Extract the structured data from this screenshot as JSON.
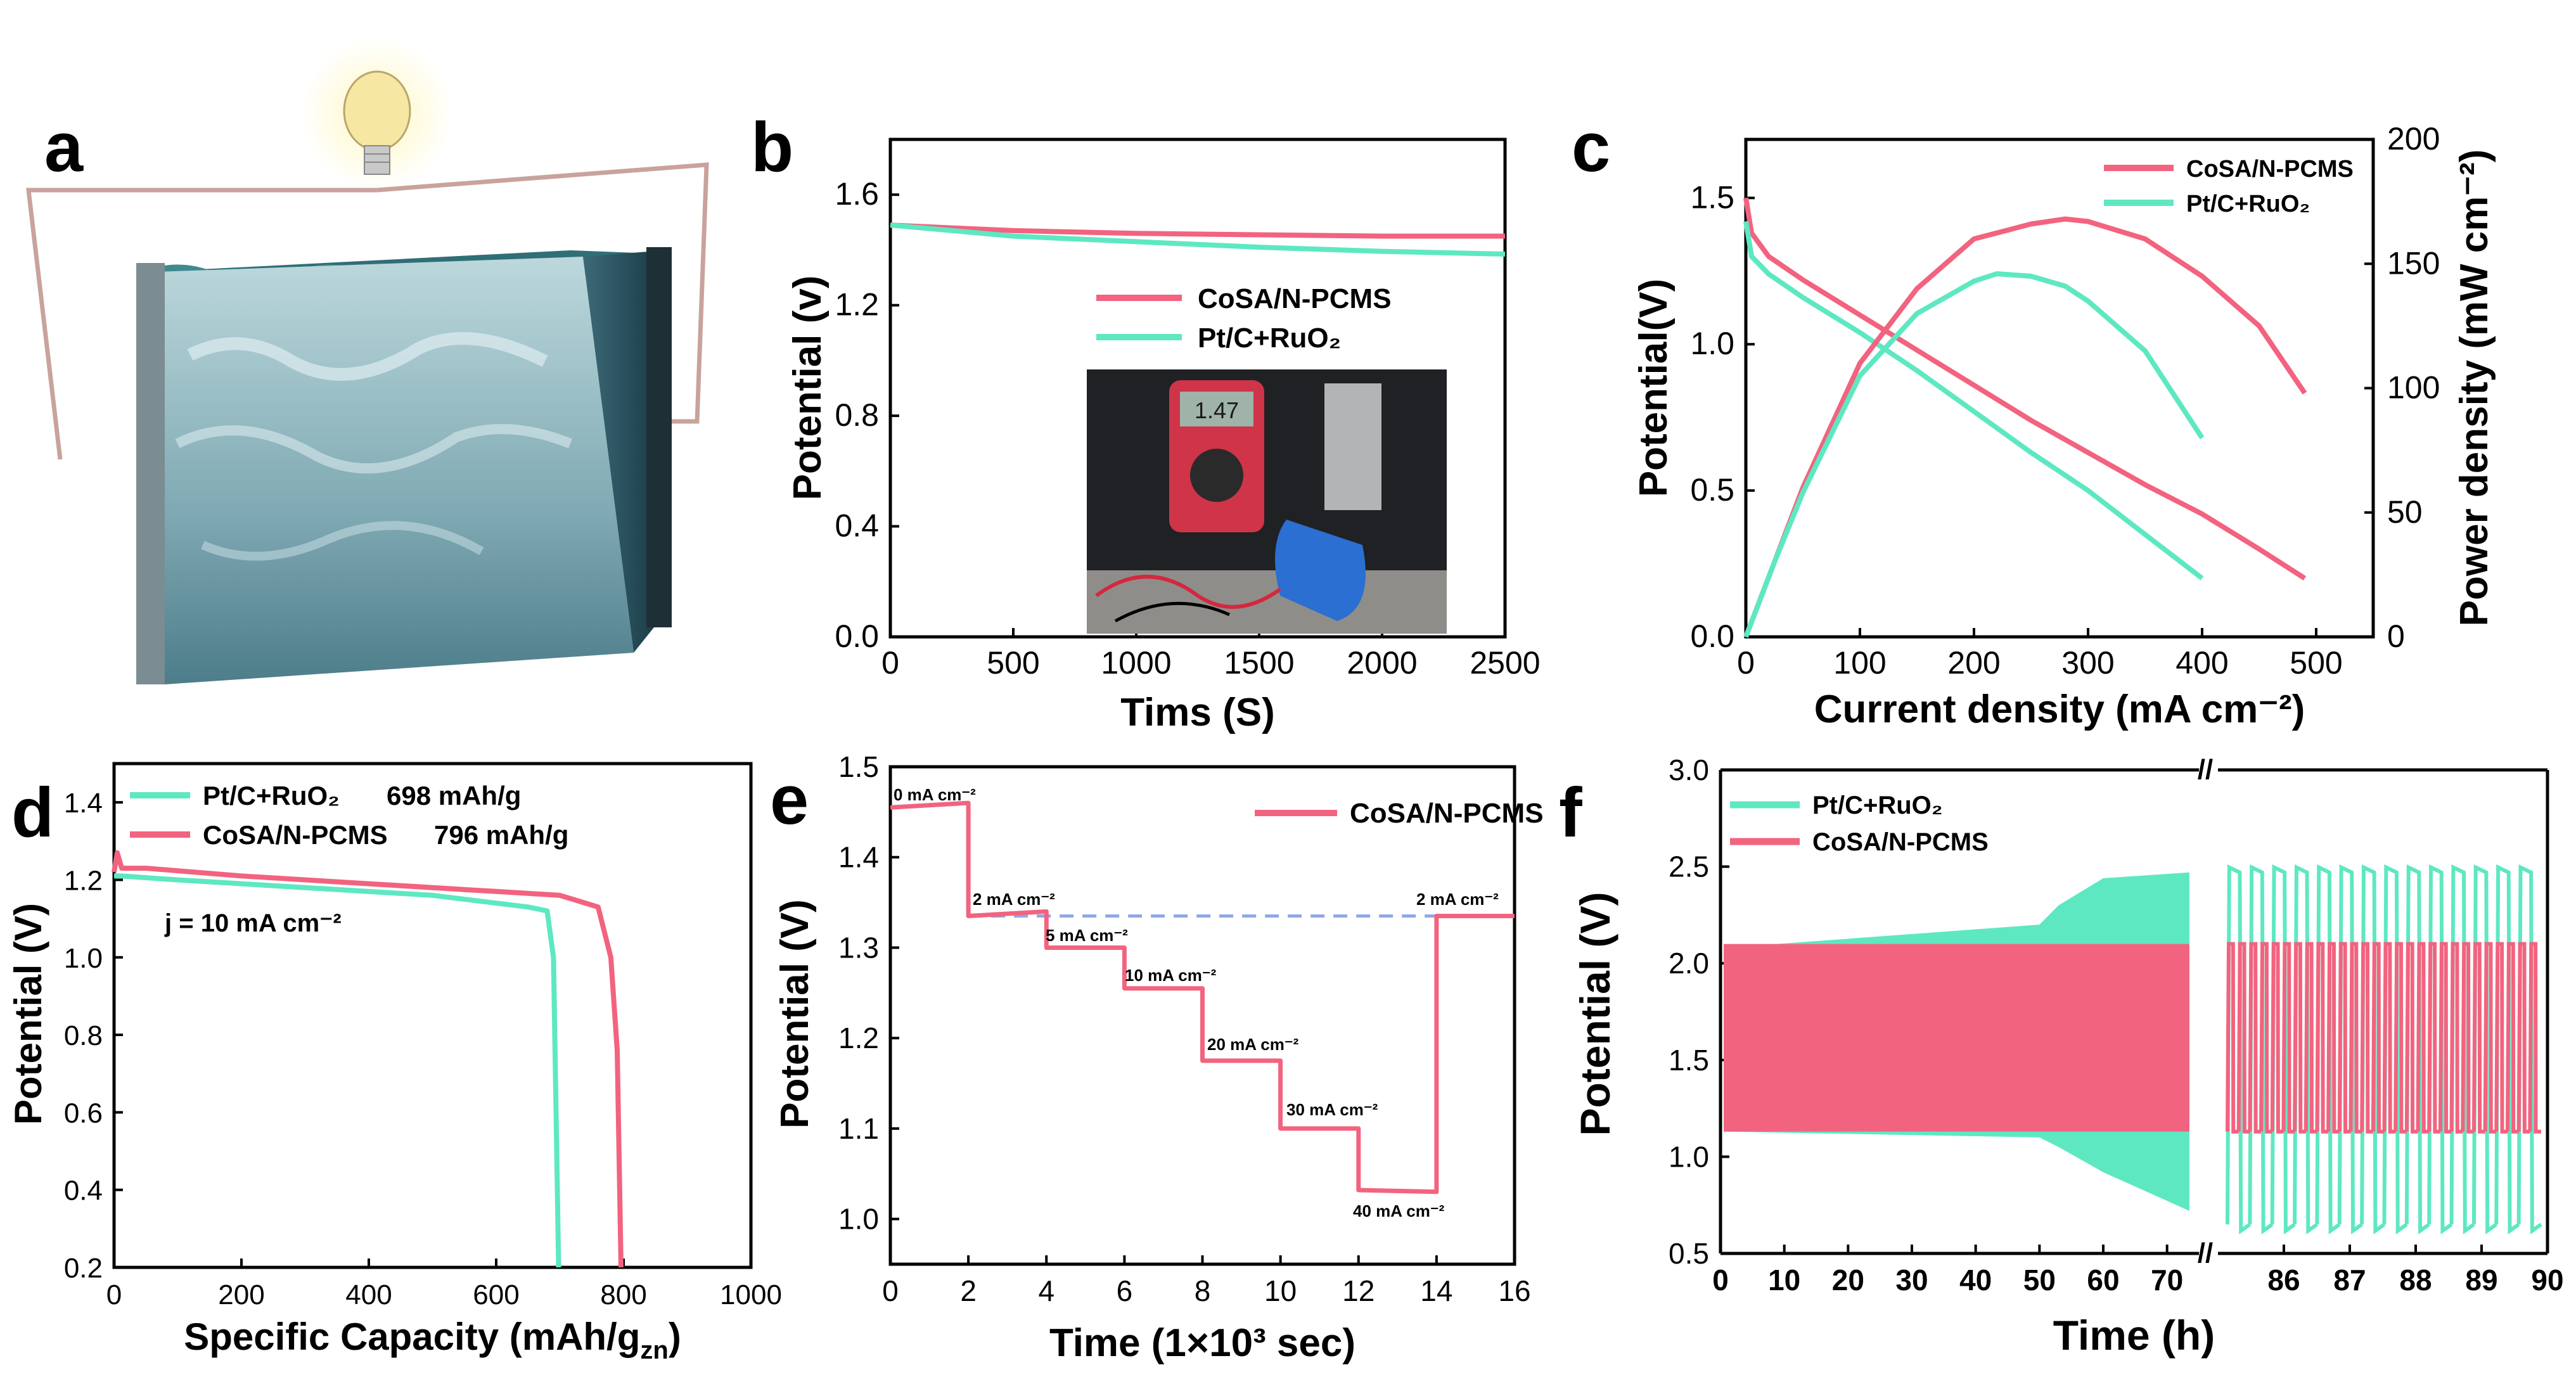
{
  "colors": {
    "pink": "#f2637f",
    "cyan": "#5ee8c2",
    "dash": "#8fa9e8",
    "axis": "#000000"
  },
  "panels": {
    "a": {
      "label": "a",
      "description_icons": [
        "lightbulb-icon",
        "water-cube-icon",
        "circuit-wire-icon"
      ]
    },
    "b": {
      "label": "b"
    },
    "c": {
      "label": "c"
    },
    "d": {
      "label": "d"
    },
    "e": {
      "label": "e"
    },
    "f": {
      "label": "f"
    }
  },
  "chart_data": [
    {
      "id": "b",
      "type": "line",
      "title": "",
      "xlabel": "Tims (S)",
      "ylabel": "Potential (v)",
      "xlim": [
        0,
        2500
      ],
      "ylim": [
        0,
        1.8
      ],
      "xticks": [
        "0",
        "500",
        "1000",
        "1500",
        "2000",
        "2500"
      ],
      "yticks": [
        "0.0",
        "0.4",
        "0.8",
        "1.2",
        "1.6"
      ],
      "inset": "photo of multimeter reading 1.47 V connected to cell",
      "inset_reading": "1.47",
      "series": [
        {
          "name": "CoSA/N-PCMS",
          "color": "pink",
          "x": [
            0,
            250,
            500,
            1000,
            1500,
            2000,
            2500
          ],
          "y": [
            1.49,
            1.48,
            1.47,
            1.46,
            1.455,
            1.45,
            1.45
          ]
        },
        {
          "name": "Pt/C+RuO₂",
          "color": "cyan",
          "x": [
            0,
            250,
            500,
            1000,
            1500,
            2000,
            2500
          ],
          "y": [
            1.49,
            1.47,
            1.45,
            1.43,
            1.41,
            1.395,
            1.385
          ]
        }
      ]
    },
    {
      "id": "c",
      "type": "line",
      "xlabel": "Current density (mA cm⁻²)",
      "ylabel": "Potential(V)",
      "y2label": "Power density (mW cm⁻²)",
      "xlim": [
        0,
        550
      ],
      "ylim": [
        0,
        1.7
      ],
      "y2lim": [
        0,
        200
      ],
      "xticks": [
        "0",
        "100",
        "200",
        "300",
        "400",
        "500"
      ],
      "yticks": [
        "0.0",
        "0.5",
        "1.0",
        "1.5"
      ],
      "y2ticks": [
        "0",
        "50",
        "100",
        "150",
        "200"
      ],
      "series": [
        {
          "name": "CoSA/N-PCMS",
          "axis": "left",
          "color": "pink",
          "x": [
            0,
            5,
            20,
            50,
            100,
            150,
            200,
            250,
            300,
            350,
            400,
            450,
            490
          ],
          "y": [
            1.5,
            1.38,
            1.3,
            1.22,
            1.1,
            0.98,
            0.86,
            0.74,
            0.63,
            0.52,
            0.42,
            0.3,
            0.2
          ]
        },
        {
          "name": "Pt/C+RuO₂",
          "axis": "left",
          "color": "cyan",
          "x": [
            0,
            5,
            20,
            50,
            100,
            150,
            200,
            250,
            300,
            350,
            400
          ],
          "y": [
            1.42,
            1.3,
            1.24,
            1.16,
            1.04,
            0.91,
            0.77,
            0.63,
            0.5,
            0.35,
            0.2
          ]
        },
        {
          "name": "CoSA/N-PCMS power",
          "axis": "right",
          "color": "pink",
          "x": [
            0,
            25,
            50,
            100,
            150,
            200,
            250,
            280,
            300,
            350,
            400,
            450,
            490
          ],
          "y": [
            0,
            30,
            60,
            110,
            140,
            160,
            166,
            168,
            167,
            160,
            145,
            125,
            98
          ]
        },
        {
          "name": "Pt/C+RuO₂ power",
          "axis": "right",
          "color": "cyan",
          "x": [
            0,
            25,
            50,
            100,
            150,
            200,
            220,
            250,
            280,
            300,
            350,
            400
          ],
          "y": [
            0,
            30,
            58,
            105,
            130,
            143,
            146,
            145,
            141,
            135,
            115,
            80
          ]
        }
      ],
      "legend": [
        "CoSA/N-PCMS",
        "Pt/C+RuO₂"
      ]
    },
    {
      "id": "d",
      "type": "line",
      "xlabel": "Specific Capacity (mAh/g",
      "xlabel_sub": "zn",
      "xlabel_end": ")",
      "ylabel": "Potential (V)",
      "xlim": [
        0,
        1000
      ],
      "ylim": [
        0.2,
        1.5
      ],
      "xticks": [
        "0",
        "200",
        "400",
        "600",
        "800",
        "1000"
      ],
      "yticks": [
        "0.2",
        "0.4",
        "0.6",
        "0.8",
        "1.0",
        "1.2",
        "1.4"
      ],
      "annotation": "j = 10 mA cm⁻²",
      "series": [
        {
          "name": "Pt/C+RuO₂",
          "capacity": "698 mAh/g",
          "color": "cyan",
          "x": [
            0,
            10,
            100,
            300,
            500,
            650,
            680,
            690,
            695,
            698
          ],
          "y": [
            1.21,
            1.21,
            1.2,
            1.18,
            1.16,
            1.13,
            1.12,
            1.0,
            0.5,
            0.2
          ]
        },
        {
          "name": "CoSA/N-PCMS",
          "capacity": "796 mAh/g",
          "color": "pink",
          "x": [
            0,
            5,
            12,
            50,
            200,
            400,
            600,
            700,
            760,
            780,
            790,
            796
          ],
          "y": [
            1.22,
            1.27,
            1.23,
            1.23,
            1.21,
            1.19,
            1.17,
            1.16,
            1.13,
            1.0,
            0.76,
            0.2
          ]
        }
      ]
    },
    {
      "id": "e",
      "type": "line",
      "xlabel": "Time (1×10³ sec)",
      "ylabel": "Potential (V)",
      "xlim": [
        0,
        16
      ],
      "ylim": [
        0.95,
        1.5
      ],
      "xticks": [
        "0",
        "2",
        "4",
        "6",
        "8",
        "10",
        "12",
        "14",
        "16"
      ],
      "yticks": [
        "1.0",
        "1.1",
        "1.2",
        "1.3",
        "1.4",
        "1.5"
      ],
      "reference_line_y": 1.335,
      "step_labels": [
        "0 mA cm⁻²",
        "2 mA cm⁻²",
        "5 mA cm⁻²",
        "10 mA cm⁻²",
        "20 mA cm⁻²",
        "30 mA cm⁻²",
        "40 mA cm⁻²",
        "2 mA cm⁻²"
      ],
      "series": [
        {
          "name": "CoSA/N-PCMS",
          "color": "pink",
          "x": [
            0,
            2,
            2,
            4,
            4,
            6,
            6,
            8,
            8,
            10,
            10,
            12,
            12,
            14,
            14,
            16
          ],
          "y": [
            1.455,
            1.46,
            1.335,
            1.34,
            1.3,
            1.3,
            1.255,
            1.255,
            1.175,
            1.175,
            1.1,
            1.1,
            1.032,
            1.03,
            1.335,
            1.335
          ]
        }
      ]
    },
    {
      "id": "f",
      "type": "line",
      "xlabel": "Time (h)",
      "ylabel": "Potential (V)",
      "xlim": [
        0,
        90
      ],
      "ylim": [
        0.5,
        3.0
      ],
      "xticks_left": [
        "0",
        "10",
        "20",
        "30",
        "40",
        "50",
        "60",
        "70"
      ],
      "xticks_right": [
        "86",
        "87",
        "88",
        "89",
        "90"
      ],
      "yticks": [
        "0.5",
        "1.0",
        "1.5",
        "2.0",
        "2.5",
        "3.0"
      ],
      "axis_break": "//",
      "series": [
        {
          "name": "Pt/C+RuO₂",
          "color": "cyan",
          "charge_max_start": 2.08,
          "charge_max_end": 2.47,
          "discharge_min_start": 1.13,
          "discharge_min_end": 0.72,
          "late_charge": 2.47,
          "late_discharge": 0.65
        },
        {
          "name": "CoSA/N-PCMS",
          "color": "pink",
          "charge": 2.1,
          "discharge": 1.13
        }
      ]
    }
  ]
}
